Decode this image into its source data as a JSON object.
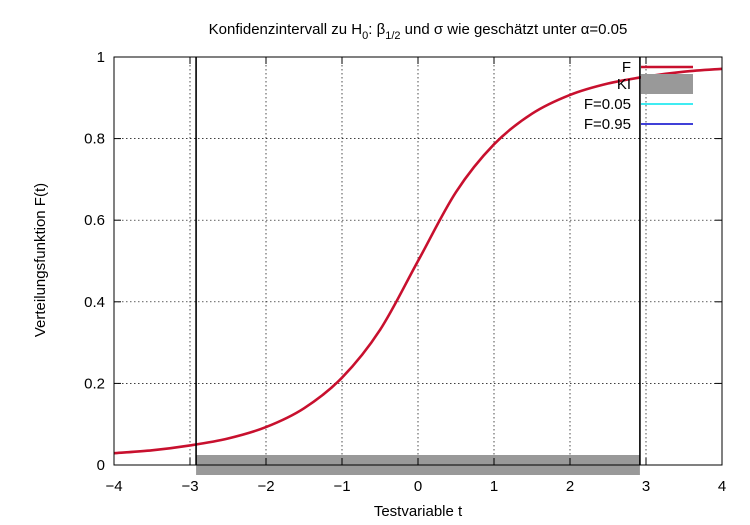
{
  "chart_data": {
    "type": "line",
    "title": {
      "before_h": "Konfidenzintervall zu H",
      "h_sub": "0",
      "before_beta": ": ",
      "beta": "β",
      "beta_sub": "1/2",
      "after_beta": " und σ wie geschätzt unter  α=0.05"
    },
    "xlabel": "Testvariable t",
    "ylabel": "Verteilungsfunktion F(t)",
    "xlim": [
      -4,
      4
    ],
    "ylim": [
      0,
      1
    ],
    "grid": true,
    "legend_position": "top-right",
    "x_ticks": [
      {
        "value": -4,
        "label": "−4"
      },
      {
        "value": -3,
        "label": "−3"
      },
      {
        "value": -2,
        "label": "−2"
      },
      {
        "value": -1,
        "label": "−1"
      },
      {
        "value": 0,
        "label": "0"
      },
      {
        "value": 1,
        "label": "1"
      },
      {
        "value": 2,
        "label": "2"
      },
      {
        "value": 3,
        "label": "3"
      },
      {
        "value": 4,
        "label": "4"
      }
    ],
    "y_ticks": [
      {
        "value": 0,
        "label": "0"
      },
      {
        "value": 0.2,
        "label": "0.2"
      },
      {
        "value": 0.4,
        "label": "0.4"
      },
      {
        "value": 0.6,
        "label": "0.6"
      },
      {
        "value": 0.8,
        "label": "0.8"
      },
      {
        "value": 1,
        "label": "1"
      }
    ],
    "series": [
      {
        "name": "F",
        "color": "#c8102e",
        "x": [
          -4,
          -3.5,
          -3,
          -2.5,
          -2,
          -1.5,
          -1,
          -0.5,
          0,
          0.5,
          1,
          1.5,
          2,
          2.5,
          3,
          3.5,
          4
        ],
        "y": [
          0.029,
          0.036,
          0.048,
          0.065,
          0.093,
          0.139,
          0.214,
          0.331,
          0.5,
          0.669,
          0.786,
          0.861,
          0.907,
          0.935,
          0.952,
          0.964,
          0.971
        ]
      }
    ],
    "confidence_interval": {
      "name": "KI",
      "color": "#999999",
      "x_start": -2.92,
      "x_end": 2.92
    },
    "quantile_lines": [
      {
        "name": "F=0.05",
        "color": "#00e5ee",
        "x": -2.92
      },
      {
        "name": "F=0.95",
        "color": "#0000cc",
        "x": 2.92
      }
    ]
  }
}
